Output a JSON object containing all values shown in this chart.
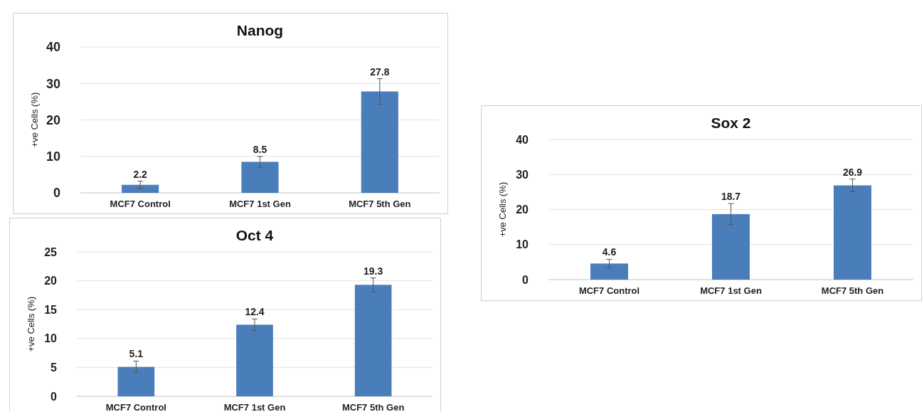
{
  "chart_data": [
    {
      "type": "bar",
      "title": "Nanog",
      "ylabel": "+ve Cells (%)",
      "categories": [
        "MCF7 Control",
        "MCF7 1st Gen",
        "MCF7 5th Gen"
      ],
      "values": [
        2.2,
        8.5,
        27.8
      ],
      "errors": [
        1.0,
        1.5,
        3.5
      ],
      "color": "#4a7ebb",
      "ylim": [
        0,
        40
      ],
      "yticks": [
        0,
        10,
        20,
        30,
        40
      ],
      "grid": "y",
      "data_labels": true
    },
    {
      "type": "bar",
      "title": "Oct 4",
      "ylabel": "+ve Cells (%)",
      "categories": [
        "MCF7 Control",
        "MCF7 1st Gen",
        "MCF7 5th Gen"
      ],
      "values": [
        5.1,
        12.4,
        19.3
      ],
      "errors": [
        1.0,
        1.0,
        1.2
      ],
      "color": "#4a7ebb",
      "ylim": [
        0,
        25
      ],
      "yticks": [
        0,
        5,
        10,
        15,
        20,
        25
      ],
      "grid": "y",
      "data_labels": true
    },
    {
      "type": "bar",
      "title": "Sox 2",
      "ylabel": "+ve Cells (%)",
      "categories": [
        "MCF7 Control",
        "MCF7 1st Gen",
        "MCF7 5th Gen"
      ],
      "values": [
        4.6,
        18.7,
        26.9
      ],
      "errors": [
        1.2,
        3.0,
        1.8
      ],
      "color": "#4a7ebb",
      "ylim": [
        0,
        40
      ],
      "yticks": [
        0,
        10,
        20,
        30,
        40
      ],
      "grid": "y",
      "data_labels": true
    }
  ]
}
